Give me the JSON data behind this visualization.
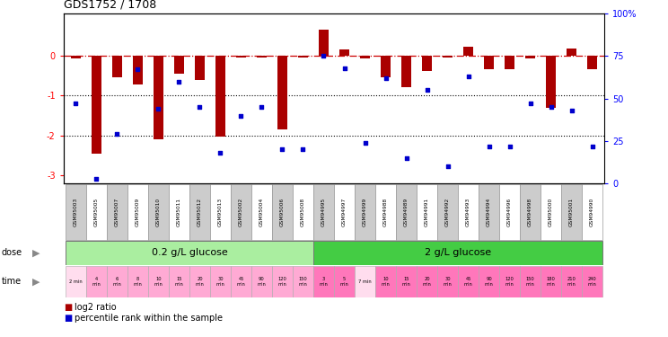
{
  "title": "GDS1752 / 1708",
  "samples": [
    "GSM95003",
    "GSM95005",
    "GSM95007",
    "GSM95009",
    "GSM95010",
    "GSM95011",
    "GSM95012",
    "GSM95013",
    "GSM95002",
    "GSM95004",
    "GSM95006",
    "GSM95008",
    "GSM94995",
    "GSM94997",
    "GSM94999",
    "GSM94988",
    "GSM94989",
    "GSM94991",
    "GSM94992",
    "GSM94993",
    "GSM94994",
    "GSM94996",
    "GSM94998",
    "GSM95000",
    "GSM95001",
    "GSM94990"
  ],
  "log2_ratio": [
    -0.08,
    -2.45,
    -0.55,
    -0.72,
    -2.1,
    -0.45,
    -0.62,
    -2.02,
    -0.06,
    -0.06,
    -1.85,
    -0.06,
    0.65,
    0.15,
    -0.08,
    -0.55,
    -0.8,
    -0.38,
    -0.05,
    0.22,
    -0.35,
    -0.35,
    -0.08,
    -1.3,
    0.17,
    -0.35
  ],
  "percentile": [
    47,
    3,
    29,
    67,
    44,
    60,
    45,
    18,
    40,
    45,
    20,
    20,
    75,
    68,
    24,
    62,
    15,
    55,
    10,
    63,
    22,
    22,
    47,
    45,
    43,
    22
  ],
  "ylim_left": [
    -3.2,
    1.05
  ],
  "yticks_left": [
    -3,
    -2,
    -1,
    0
  ],
  "yticks_right": [
    0,
    25,
    50,
    75,
    100
  ],
  "time_labels": [
    "2 min",
    "4\nmin",
    "6\nmin",
    "8\nmin",
    "10\nmin",
    "15\nmin",
    "20\nmin",
    "30\nmin",
    "45\nmin",
    "90\nmin",
    "120\nmin",
    "150\nmin",
    "3\nmin",
    "5\nmin",
    "7 min",
    "10\nmin",
    "15\nmin",
    "20\nmin",
    "30\nmin",
    "45\nmin",
    "90\nmin",
    "120\nmin",
    "150\nmin",
    "180\nmin",
    "210\nmin",
    "240\nmin"
  ],
  "bar_color": "#AA0000",
  "dot_color": "#0000CC",
  "zeroline_color": "#CC0000",
  "dose_label_0": "0.2 g/L glucose",
  "dose_label_1": "2 g/L glucose",
  "dose_color_0": "#AAEEA0",
  "dose_color_1": "#44CC44",
  "dose_split": 12,
  "n_samples": 26,
  "legend_red": "log2 ratio",
  "legend_blue": "percentile rank within the sample",
  "time_color_low_normal": "#FF99CC",
  "time_color_low_special": "#FFCCEE",
  "time_color_high_normal": "#FF66BB",
  "time_color_high_special": "#FFAADD"
}
